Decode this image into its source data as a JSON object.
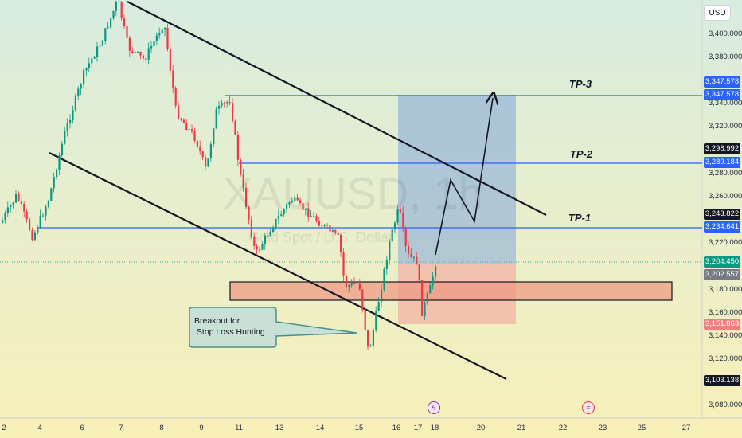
{
  "symbol": "XAUUSD, 1h",
  "symbol_description": "Gold Spot / U.S. Dollar",
  "currency_button": "USD",
  "y_axis_ticks": [
    "3,400.000",
    "3,380.000",
    "3,340.000",
    "3,320.000",
    "3,280.000",
    "3,260.000",
    "3,220.000",
    "3,180.000",
    "3,160.000",
    "3,140.000",
    "3,120.000",
    "3,080.000"
  ],
  "x_axis_ticks": [
    "2",
    "4",
    "6",
    "7",
    "8",
    "9",
    "11",
    "13",
    "14",
    "15",
    "16",
    "17",
    "18",
    "20",
    "21",
    "22",
    "23",
    "25",
    "27"
  ],
  "price_tags": [
    {
      "id": "tp3-a",
      "text": "3,347.578",
      "color": "#2962ff"
    },
    {
      "id": "tp3-b",
      "text": "3,347.578",
      "color": "#2962ff"
    },
    {
      "id": "high",
      "text": "3,298.992",
      "color": "#131722"
    },
    {
      "id": "tp2",
      "text": "3,289.184",
      "color": "#2962ff"
    },
    {
      "id": "t243",
      "text": "3,243.822",
      "color": "#131722"
    },
    {
      "id": "tp1",
      "text": "3,234.641",
      "color": "#2962ff"
    },
    {
      "id": "last",
      "text": "3,204.450",
      "color": "#089981"
    },
    {
      "id": "t202",
      "text": "3,202.557",
      "color": "#787b86"
    },
    {
      "id": "sl",
      "text": "3,151.863",
      "color": "#f23645"
    },
    {
      "id": "low",
      "text": "3,103.138",
      "color": "#131722"
    }
  ],
  "tp_labels": [
    "TP-3",
    "TP-2",
    "TP-1"
  ],
  "callout": "Breakout for\n Stop Loss Hunting",
  "events": {
    "lightning": "ϟ",
    "flag": "≡"
  },
  "colors": {
    "bg_top": "#d8ecdf",
    "bg_bottom": "#f7efb9",
    "up": "#089981",
    "down": "#f23645",
    "level": "#2962ff",
    "target_zone": "rgba(120,160,220,0.55)",
    "stop_zone": "rgba(245,150,150,0.55)",
    "demand_zone": "rgba(240,150,130,0.75)",
    "callout_fill": "#c9e0d6",
    "callout_border": "#4a8f8a"
  }
}
